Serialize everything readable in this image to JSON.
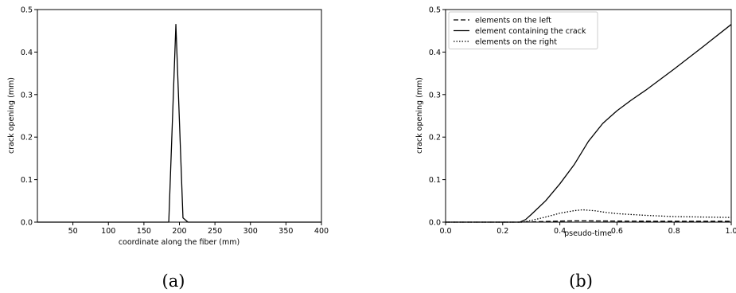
{
  "chart_data": [
    {
      "type": "line",
      "caption": "(a)",
      "xlabel": "coordinate along the fiber (mm)",
      "ylabel": "crack opening (mm)",
      "xlim": [
        0,
        400
      ],
      "ylim": [
        0,
        0.5
      ],
      "xticks": [
        50,
        100,
        150,
        200,
        250,
        300,
        350,
        400
      ],
      "yticks": [
        0.0,
        0.1,
        0.2,
        0.3,
        0.4,
        0.5
      ],
      "xtick_labels": [
        "50",
        "100",
        "150",
        "200",
        "250",
        "300",
        "350",
        "400"
      ],
      "ytick_labels": [
        "0.0",
        "0.1",
        "0.2",
        "0.3",
        "0.4",
        "0.5"
      ],
      "grid": false,
      "series": [
        {
          "style": "solid",
          "x": [
            0,
            185,
            195,
            205,
            212,
            400
          ],
          "y": [
            0,
            0,
            0.465,
            0.01,
            0,
            0
          ]
        }
      ]
    },
    {
      "type": "line",
      "caption": "(b)",
      "xlabel": "pseudo-time",
      "ylabel": "crack opening (mm)",
      "xlim": [
        0.0,
        1.0
      ],
      "ylim": [
        0,
        0.5
      ],
      "xticks": [
        0.0,
        0.2,
        0.4,
        0.6,
        0.8,
        1.0
      ],
      "yticks": [
        0.0,
        0.1,
        0.2,
        0.3,
        0.4,
        0.5
      ],
      "xtick_labels": [
        "0.0",
        "0.2",
        "0.4",
        "0.6",
        "0.8",
        "1.0"
      ],
      "ytick_labels": [
        "0.0",
        "0.1",
        "0.2",
        "0.3",
        "0.4",
        "0.5"
      ],
      "grid": false,
      "legend_position": "top-left",
      "series": [
        {
          "name": "elements on the left",
          "style": "dashed",
          "x": [
            0.0,
            0.26,
            0.3,
            0.35,
            0.4,
            0.45,
            0.5,
            0.6,
            0.7,
            0.8,
            0.9,
            1.0
          ],
          "y": [
            0,
            0,
            0.0005,
            0.0015,
            0.0025,
            0.003,
            0.003,
            0.0025,
            0.0022,
            0.002,
            0.002,
            0.002
          ]
        },
        {
          "name": "element containing the crack",
          "style": "solid",
          "x": [
            0.0,
            0.26,
            0.28,
            0.3,
            0.35,
            0.4,
            0.45,
            0.5,
            0.55,
            0.6,
            0.65,
            0.7,
            0.8,
            0.9,
            1.0
          ],
          "y": [
            0,
            0,
            0.006,
            0.018,
            0.05,
            0.09,
            0.135,
            0.19,
            0.232,
            0.262,
            0.287,
            0.31,
            0.36,
            0.412,
            0.465
          ]
        },
        {
          "name": "elements on the right",
          "style": "dotted",
          "x": [
            0.0,
            0.27,
            0.3,
            0.35,
            0.4,
            0.45,
            0.48,
            0.52,
            0.56,
            0.6,
            0.7,
            0.8,
            0.9,
            1.0
          ],
          "y": [
            0,
            0,
            0.004,
            0.012,
            0.021,
            0.027,
            0.029,
            0.027,
            0.023,
            0.02,
            0.016,
            0.013,
            0.012,
            0.011
          ]
        }
      ]
    }
  ]
}
